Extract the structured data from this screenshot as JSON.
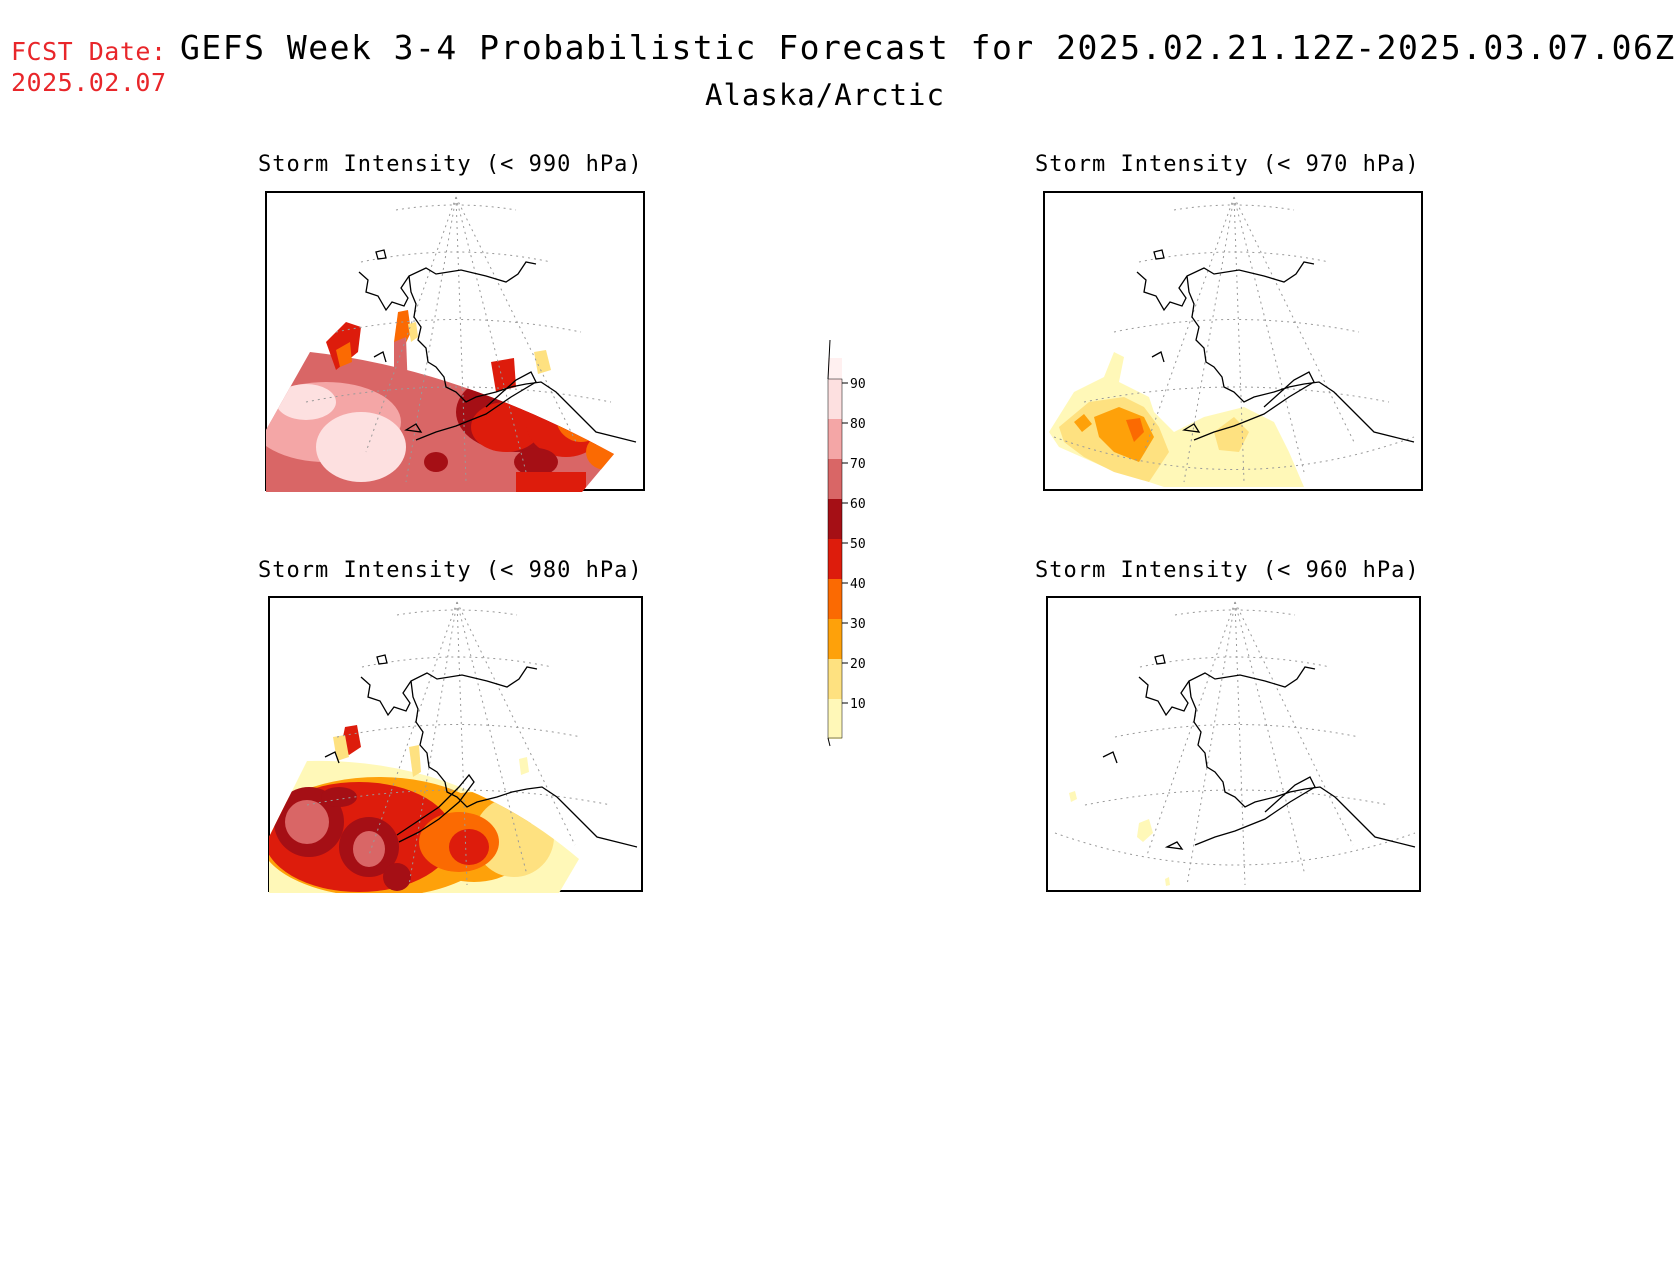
{
  "header": {
    "fcst_label": "FCST Date:",
    "fcst_date": "2025.02.07",
    "title": "GEFS Week 3-4 Probabilistic Forecast for 2025.02.21.12Z-2025.03.07.06Z",
    "subtitle": "Alaska/Arctic"
  },
  "panels": [
    {
      "title": "Storm Intensity (< 990 hPa)",
      "level": "high"
    },
    {
      "title": "Storm Intensity (< 970 hPa)",
      "level": "low"
    },
    {
      "title": "Storm Intensity (< 980 hPa)",
      "level": "medium"
    },
    {
      "title": "Storm Intensity (< 960 hPa)",
      "level": "minimal"
    }
  ],
  "colorbar": {
    "labels": [
      "90",
      "80",
      "70",
      "60",
      "50",
      "40",
      "30",
      "20",
      "10"
    ],
    "colors": [
      "#fde0e0",
      "#f4a6a6",
      "#d96666",
      "#a50f15",
      "#dd1c0c",
      "#fb6a02",
      "#fea10a",
      "#fee180",
      "#fff8b8"
    ]
  }
}
